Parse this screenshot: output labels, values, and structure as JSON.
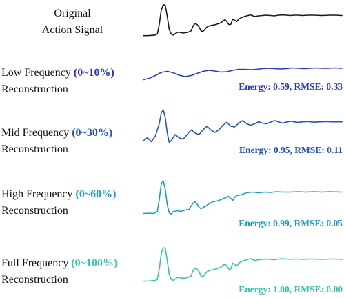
{
  "chart_data": [
    {
      "type": "line",
      "title": "Original Action Signal",
      "title_lines": [
        "Original",
        "Action Signal"
      ],
      "color": "#1a1a1a",
      "ylim": [
        -0.2,
        1.05
      ],
      "x": [
        0,
        0.02,
        0.04,
        0.06,
        0.07,
        0.08,
        0.09,
        0.1,
        0.11,
        0.12,
        0.13,
        0.14,
        0.15,
        0.16,
        0.17,
        0.18,
        0.19,
        0.2,
        0.21,
        0.22,
        0.23,
        0.24,
        0.25,
        0.26,
        0.27,
        0.28,
        0.29,
        0.3,
        0.31,
        0.32,
        0.33,
        0.34,
        0.35,
        0.36,
        0.37,
        0.38,
        0.39,
        0.4,
        0.41,
        0.42,
        0.43,
        0.44,
        0.45,
        0.46,
        0.47,
        0.48,
        0.5,
        0.52,
        0.54,
        0.56,
        0.58,
        0.6,
        0.62,
        0.64,
        0.66,
        0.68,
        0.7,
        0.72,
        0.74,
        0.76,
        0.78,
        0.8,
        0.83,
        0.86,
        0.9,
        0.94,
        0.97,
        1.0
      ],
      "values": [
        0.0,
        0.0,
        0.01,
        0.02,
        0.05,
        0.35,
        0.8,
        0.97,
        0.95,
        0.6,
        0.2,
        0.05,
        0.02,
        0.06,
        0.1,
        0.11,
        0.09,
        0.08,
        0.09,
        0.1,
        0.12,
        0.15,
        0.3,
        0.38,
        0.35,
        0.28,
        0.15,
        0.13,
        0.2,
        0.27,
        0.3,
        0.32,
        0.33,
        0.34,
        0.36,
        0.38,
        0.4,
        0.45,
        0.5,
        0.44,
        0.35,
        0.35,
        0.52,
        0.48,
        0.44,
        0.52,
        0.58,
        0.62,
        0.65,
        0.6,
        0.62,
        0.63,
        0.64,
        0.63,
        0.62,
        0.64,
        0.65,
        0.64,
        0.63,
        0.64,
        0.64,
        0.63,
        0.64,
        0.64,
        0.63,
        0.64,
        0.64,
        0.63
      ]
    },
    {
      "type": "line",
      "title": "Low Frequency (0~10%) Reconstruction",
      "title_prefix": "Low Frequency",
      "title_pct": "(0~10%)",
      "title_suffix": "Reconstruction",
      "color": "#2a36c8",
      "metric": "Energy: 0.59, RMSE: 0.33",
      "ylim": [
        -0.25,
        0.35
      ],
      "x": [
        0,
        0.03,
        0.06,
        0.09,
        0.12,
        0.15,
        0.18,
        0.21,
        0.24,
        0.27,
        0.3,
        0.33,
        0.36,
        0.39,
        0.42,
        0.45,
        0.48,
        0.51,
        0.54,
        0.57,
        0.6,
        0.63,
        0.66,
        0.69,
        0.72,
        0.75,
        0.78,
        0.81,
        0.84,
        0.87,
        0.9,
        0.93,
        0.96,
        1.0
      ],
      "values": [
        -0.18,
        -0.14,
        -0.06,
        0.03,
        0.06,
        0.02,
        -0.05,
        -0.09,
        -0.06,
        0.0,
        0.06,
        0.09,
        0.07,
        0.04,
        0.05,
        0.09,
        0.12,
        0.12,
        0.11,
        0.12,
        0.14,
        0.15,
        0.14,
        0.13,
        0.14,
        0.16,
        0.15,
        0.14,
        0.15,
        0.16,
        0.15,
        0.15,
        0.16,
        0.15
      ]
    },
    {
      "type": "line",
      "title": "Mid Frequency (0~30%) Reconstruction",
      "title_prefix": "Mid Frequency",
      "title_pct": "(0~30%)",
      "title_suffix": "Reconstruction",
      "color": "#2352c4",
      "metric": "Energy: 0.95, RMSE: 0.11",
      "ylim": [
        -0.25,
        1.0
      ],
      "x": [
        0,
        0.02,
        0.04,
        0.06,
        0.08,
        0.09,
        0.1,
        0.11,
        0.12,
        0.13,
        0.14,
        0.16,
        0.18,
        0.2,
        0.22,
        0.24,
        0.26,
        0.28,
        0.3,
        0.32,
        0.34,
        0.36,
        0.38,
        0.4,
        0.42,
        0.44,
        0.46,
        0.48,
        0.5,
        0.52,
        0.54,
        0.56,
        0.58,
        0.6,
        0.62,
        0.64,
        0.66,
        0.68,
        0.7,
        0.72,
        0.74,
        0.76,
        0.78,
        0.8,
        0.83,
        0.86,
        0.89,
        0.92,
        0.95,
        1.0
      ],
      "values": [
        -0.05,
        0.05,
        -0.08,
        0.1,
        0.5,
        0.85,
        0.95,
        0.7,
        0.2,
        -0.1,
        -0.05,
        0.15,
        0.05,
        0.0,
        0.15,
        0.3,
        0.2,
        0.15,
        0.3,
        0.42,
        0.3,
        0.22,
        0.3,
        0.45,
        0.55,
        0.42,
        0.4,
        0.52,
        0.6,
        0.5,
        0.45,
        0.5,
        0.56,
        0.52,
        0.5,
        0.55,
        0.6,
        0.56,
        0.52,
        0.55,
        0.58,
        0.56,
        0.54,
        0.56,
        0.57,
        0.55,
        0.56,
        0.57,
        0.56,
        0.56
      ]
    },
    {
      "type": "line",
      "title": "High Frequency (0~60%) Reconstruction",
      "title_prefix": "High Frequency",
      "title_pct": "(0~60%)",
      "title_suffix": "Reconstruction",
      "color": "#1f9bc0",
      "metric": "Energy: 0.99, RMSE: 0.05",
      "ylim": [
        -0.15,
        1.05
      ],
      "x": [
        0,
        0.03,
        0.05,
        0.07,
        0.08,
        0.09,
        0.1,
        0.11,
        0.12,
        0.13,
        0.14,
        0.15,
        0.17,
        0.19,
        0.21,
        0.23,
        0.25,
        0.26,
        0.27,
        0.28,
        0.29,
        0.31,
        0.33,
        0.35,
        0.37,
        0.39,
        0.41,
        0.43,
        0.44,
        0.45,
        0.46,
        0.47,
        0.49,
        0.52,
        0.55,
        0.58,
        0.61,
        0.64,
        0.67,
        0.7,
        0.74,
        0.78,
        0.82,
        0.86,
        0.9,
        0.94,
        1.0
      ],
      "values": [
        0.0,
        0.01,
        0.0,
        0.05,
        0.4,
        0.85,
        0.95,
        0.7,
        0.25,
        0.02,
        -0.02,
        0.05,
        0.08,
        0.06,
        0.1,
        0.12,
        0.3,
        0.35,
        0.28,
        0.18,
        0.14,
        0.2,
        0.28,
        0.34,
        0.36,
        0.4,
        0.45,
        0.5,
        0.44,
        0.38,
        0.48,
        0.52,
        0.54,
        0.6,
        0.62,
        0.6,
        0.62,
        0.61,
        0.63,
        0.62,
        0.62,
        0.63,
        0.62,
        0.63,
        0.62,
        0.63,
        0.62
      ]
    },
    {
      "type": "line",
      "title": "Full Frequency (0~100%) Reconstruction",
      "title_prefix": "Full Frequency",
      "title_pct": "(0~100%)",
      "title_suffix": "Reconstruction",
      "color": "#2fc7a4",
      "metric": "Energy: 1.00, RMSE: 0.00",
      "ylim": [
        -0.15,
        1.05
      ],
      "x": [
        0,
        0.02,
        0.04,
        0.06,
        0.07,
        0.08,
        0.09,
        0.1,
        0.11,
        0.12,
        0.13,
        0.14,
        0.15,
        0.16,
        0.17,
        0.18,
        0.19,
        0.2,
        0.21,
        0.22,
        0.23,
        0.24,
        0.25,
        0.26,
        0.27,
        0.28,
        0.29,
        0.3,
        0.31,
        0.32,
        0.33,
        0.34,
        0.35,
        0.36,
        0.37,
        0.38,
        0.39,
        0.4,
        0.41,
        0.42,
        0.43,
        0.44,
        0.45,
        0.46,
        0.47,
        0.48,
        0.5,
        0.52,
        0.54,
        0.56,
        0.58,
        0.6,
        0.62,
        0.64,
        0.66,
        0.68,
        0.7,
        0.72,
        0.74,
        0.76,
        0.78,
        0.8,
        0.83,
        0.86,
        0.9,
        0.94,
        0.97,
        1.0
      ],
      "values": [
        0.0,
        0.0,
        0.01,
        0.02,
        0.05,
        0.35,
        0.8,
        0.97,
        0.95,
        0.6,
        0.2,
        0.05,
        0.02,
        0.06,
        0.1,
        0.11,
        0.09,
        0.08,
        0.09,
        0.1,
        0.12,
        0.15,
        0.3,
        0.38,
        0.35,
        0.28,
        0.15,
        0.13,
        0.2,
        0.27,
        0.3,
        0.32,
        0.33,
        0.34,
        0.36,
        0.38,
        0.4,
        0.45,
        0.5,
        0.44,
        0.35,
        0.35,
        0.52,
        0.48,
        0.44,
        0.52,
        0.58,
        0.62,
        0.65,
        0.6,
        0.62,
        0.63,
        0.64,
        0.63,
        0.62,
        0.64,
        0.65,
        0.64,
        0.63,
        0.64,
        0.64,
        0.63,
        0.64,
        0.64,
        0.63,
        0.64,
        0.64,
        0.63
      ]
    }
  ]
}
